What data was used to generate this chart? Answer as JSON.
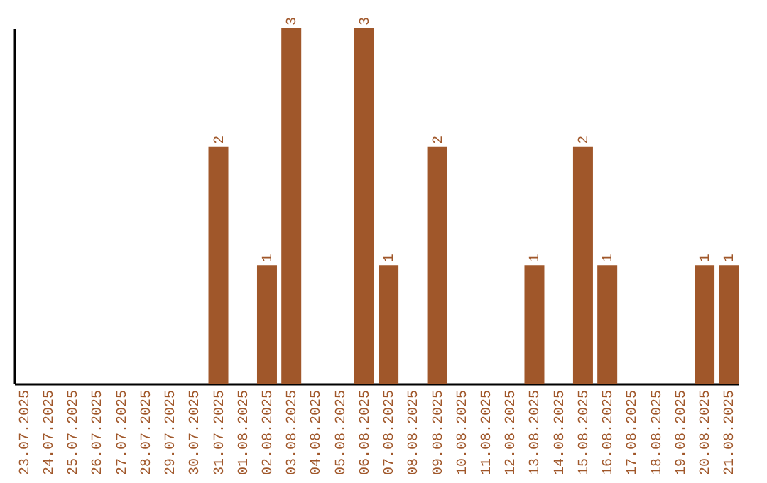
{
  "chart_data": {
    "type": "bar",
    "categories": [
      "23.07.2025",
      "24.07.2025",
      "25.07.2025",
      "26.07.2025",
      "27.07.2025",
      "28.07.2025",
      "29.07.2025",
      "30.07.2025",
      "31.07.2025",
      "01.08.2025",
      "02.08.2025",
      "03.08.2025",
      "04.08.2025",
      "05.08.2025",
      "06.08.2025",
      "07.08.2025",
      "08.08.2025",
      "09.08.2025",
      "10.08.2025",
      "11.08.2025",
      "12.08.2025",
      "13.08.2025",
      "14.08.2025",
      "15.08.2025",
      "16.08.2025",
      "17.08.2025",
      "18.08.2025",
      "19.08.2025",
      "20.08.2025",
      "21.08.2025"
    ],
    "values": [
      0,
      0,
      0,
      0,
      0,
      0,
      0,
      0,
      2,
      0,
      1,
      3,
      0,
      0,
      3,
      1,
      0,
      2,
      0,
      0,
      0,
      1,
      0,
      2,
      1,
      0,
      0,
      0,
      1,
      1
    ],
    "value_labels": [
      null,
      null,
      null,
      null,
      null,
      null,
      null,
      null,
      "2",
      null,
      "1",
      "3",
      null,
      null,
      "3",
      "1",
      null,
      "2",
      null,
      null,
      null,
      "1",
      null,
      "2",
      "1",
      null,
      null,
      null,
      "1",
      "1"
    ],
    "color": "#a0572a",
    "tick_labels": "x",
    "grid": false
  }
}
